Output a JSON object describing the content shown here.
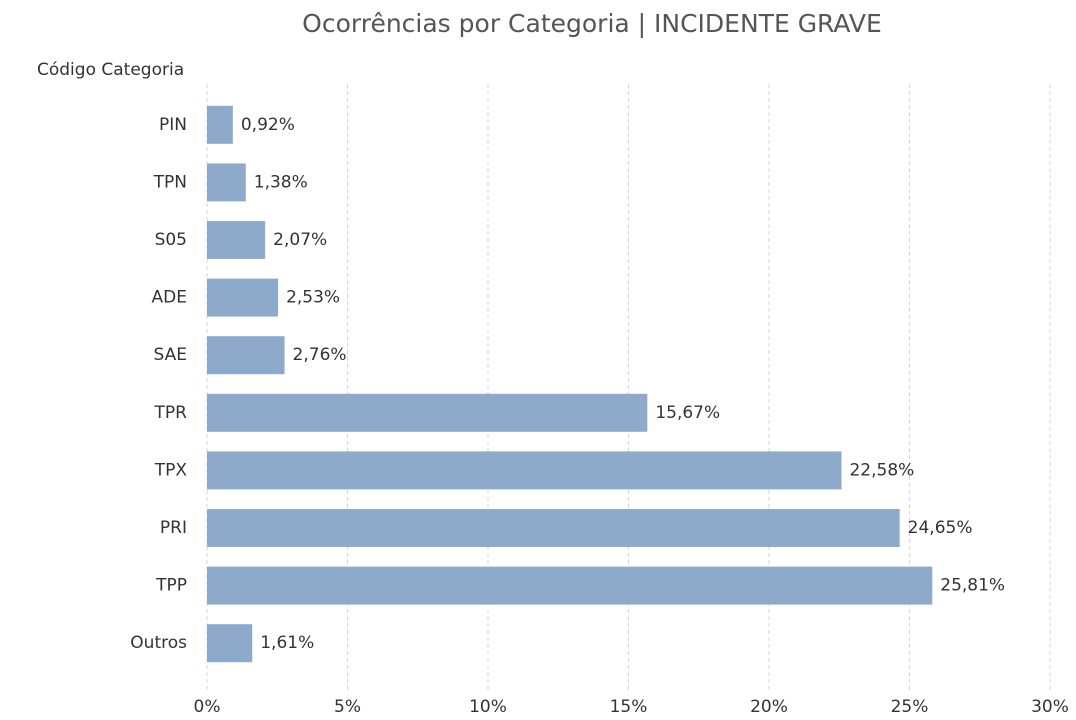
{
  "chart_data": {
    "type": "bar",
    "orientation": "horizontal",
    "title": "Ocorrências por Categoria | INCIDENTE GRAVE",
    "y_axis_label": "Código Categoria",
    "categories": [
      "PIN",
      "TPN",
      "S05",
      "ADE",
      "SAE",
      "TPR",
      "TPX",
      "PRI",
      "TPP",
      "Outros"
    ],
    "values": [
      0.92,
      1.38,
      2.07,
      2.53,
      2.76,
      15.67,
      22.58,
      24.65,
      25.81,
      1.61
    ],
    "value_labels": [
      "0,92%",
      "1,38%",
      "2,07%",
      "2,53%",
      "2,76%",
      "15,67%",
      "22,58%",
      "24,65%",
      "25,81%",
      "1,61%"
    ],
    "color": "#8eaacb",
    "xlim": [
      0,
      30
    ],
    "xticks": [
      {
        "value": 0,
        "label": "0%"
      },
      {
        "value": 5,
        "label": "5%"
      },
      {
        "value": 10,
        "label": "10%"
      },
      {
        "value": 15,
        "label": "15%"
      },
      {
        "value": 20,
        "label": "20%"
      },
      {
        "value": 25,
        "label": "25%"
      },
      {
        "value": 30,
        "label": "30%"
      }
    ],
    "grid": true
  }
}
